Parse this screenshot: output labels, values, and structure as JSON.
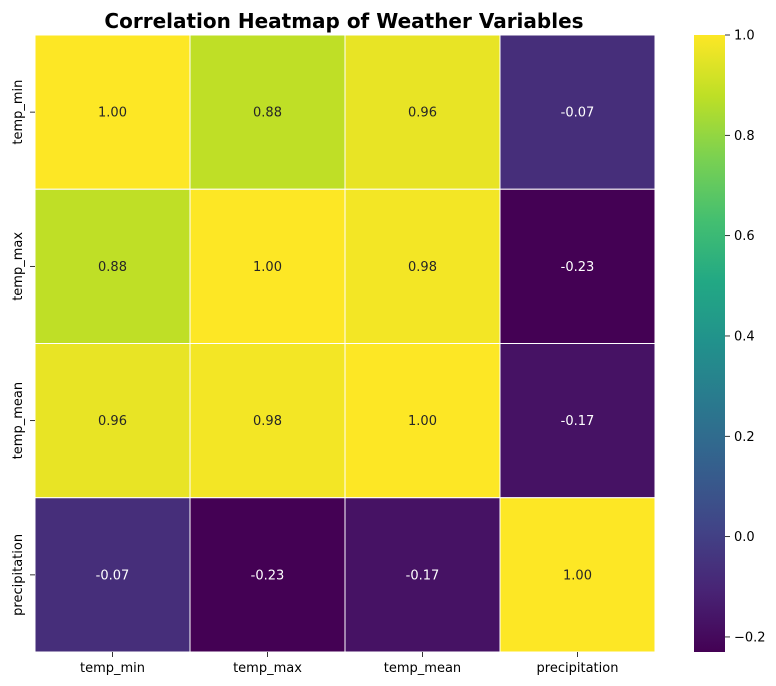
{
  "chart_data": {
    "type": "heatmap",
    "title": "Correlation Heatmap of Weather Variables",
    "x_categories": [
      "temp_min",
      "temp_max",
      "temp_mean",
      "precipitation"
    ],
    "y_categories": [
      "temp_min",
      "temp_max",
      "temp_mean",
      "precipitation"
    ],
    "values": [
      [
        1.0,
        0.88,
        0.96,
        -0.07
      ],
      [
        0.88,
        1.0,
        0.98,
        -0.23
      ],
      [
        0.96,
        0.98,
        1.0,
        -0.17
      ],
      [
        -0.07,
        -0.23,
        -0.17,
        1.0
      ]
    ],
    "cell_labels": [
      [
        "1.00",
        "0.88",
        "0.96",
        "-0.07"
      ],
      [
        "0.88",
        "1.00",
        "0.98",
        "-0.23"
      ],
      [
        "0.96",
        "0.98",
        "1.00",
        "-0.17"
      ],
      [
        "-0.07",
        "-0.23",
        "-0.17",
        "1.00"
      ]
    ],
    "colormap": "viridis",
    "vmin": -0.23,
    "vmax": 1.0,
    "colorbar": {
      "ticks": [
        -0.2,
        0.0,
        0.2,
        0.4,
        0.6,
        0.8,
        1.0
      ],
      "tick_labels": [
        "−0.2",
        "0.0",
        "0.2",
        "0.4",
        "0.6",
        "0.8",
        "1.0"
      ],
      "position": "right"
    },
    "cell_border_color": "#ffffff"
  }
}
